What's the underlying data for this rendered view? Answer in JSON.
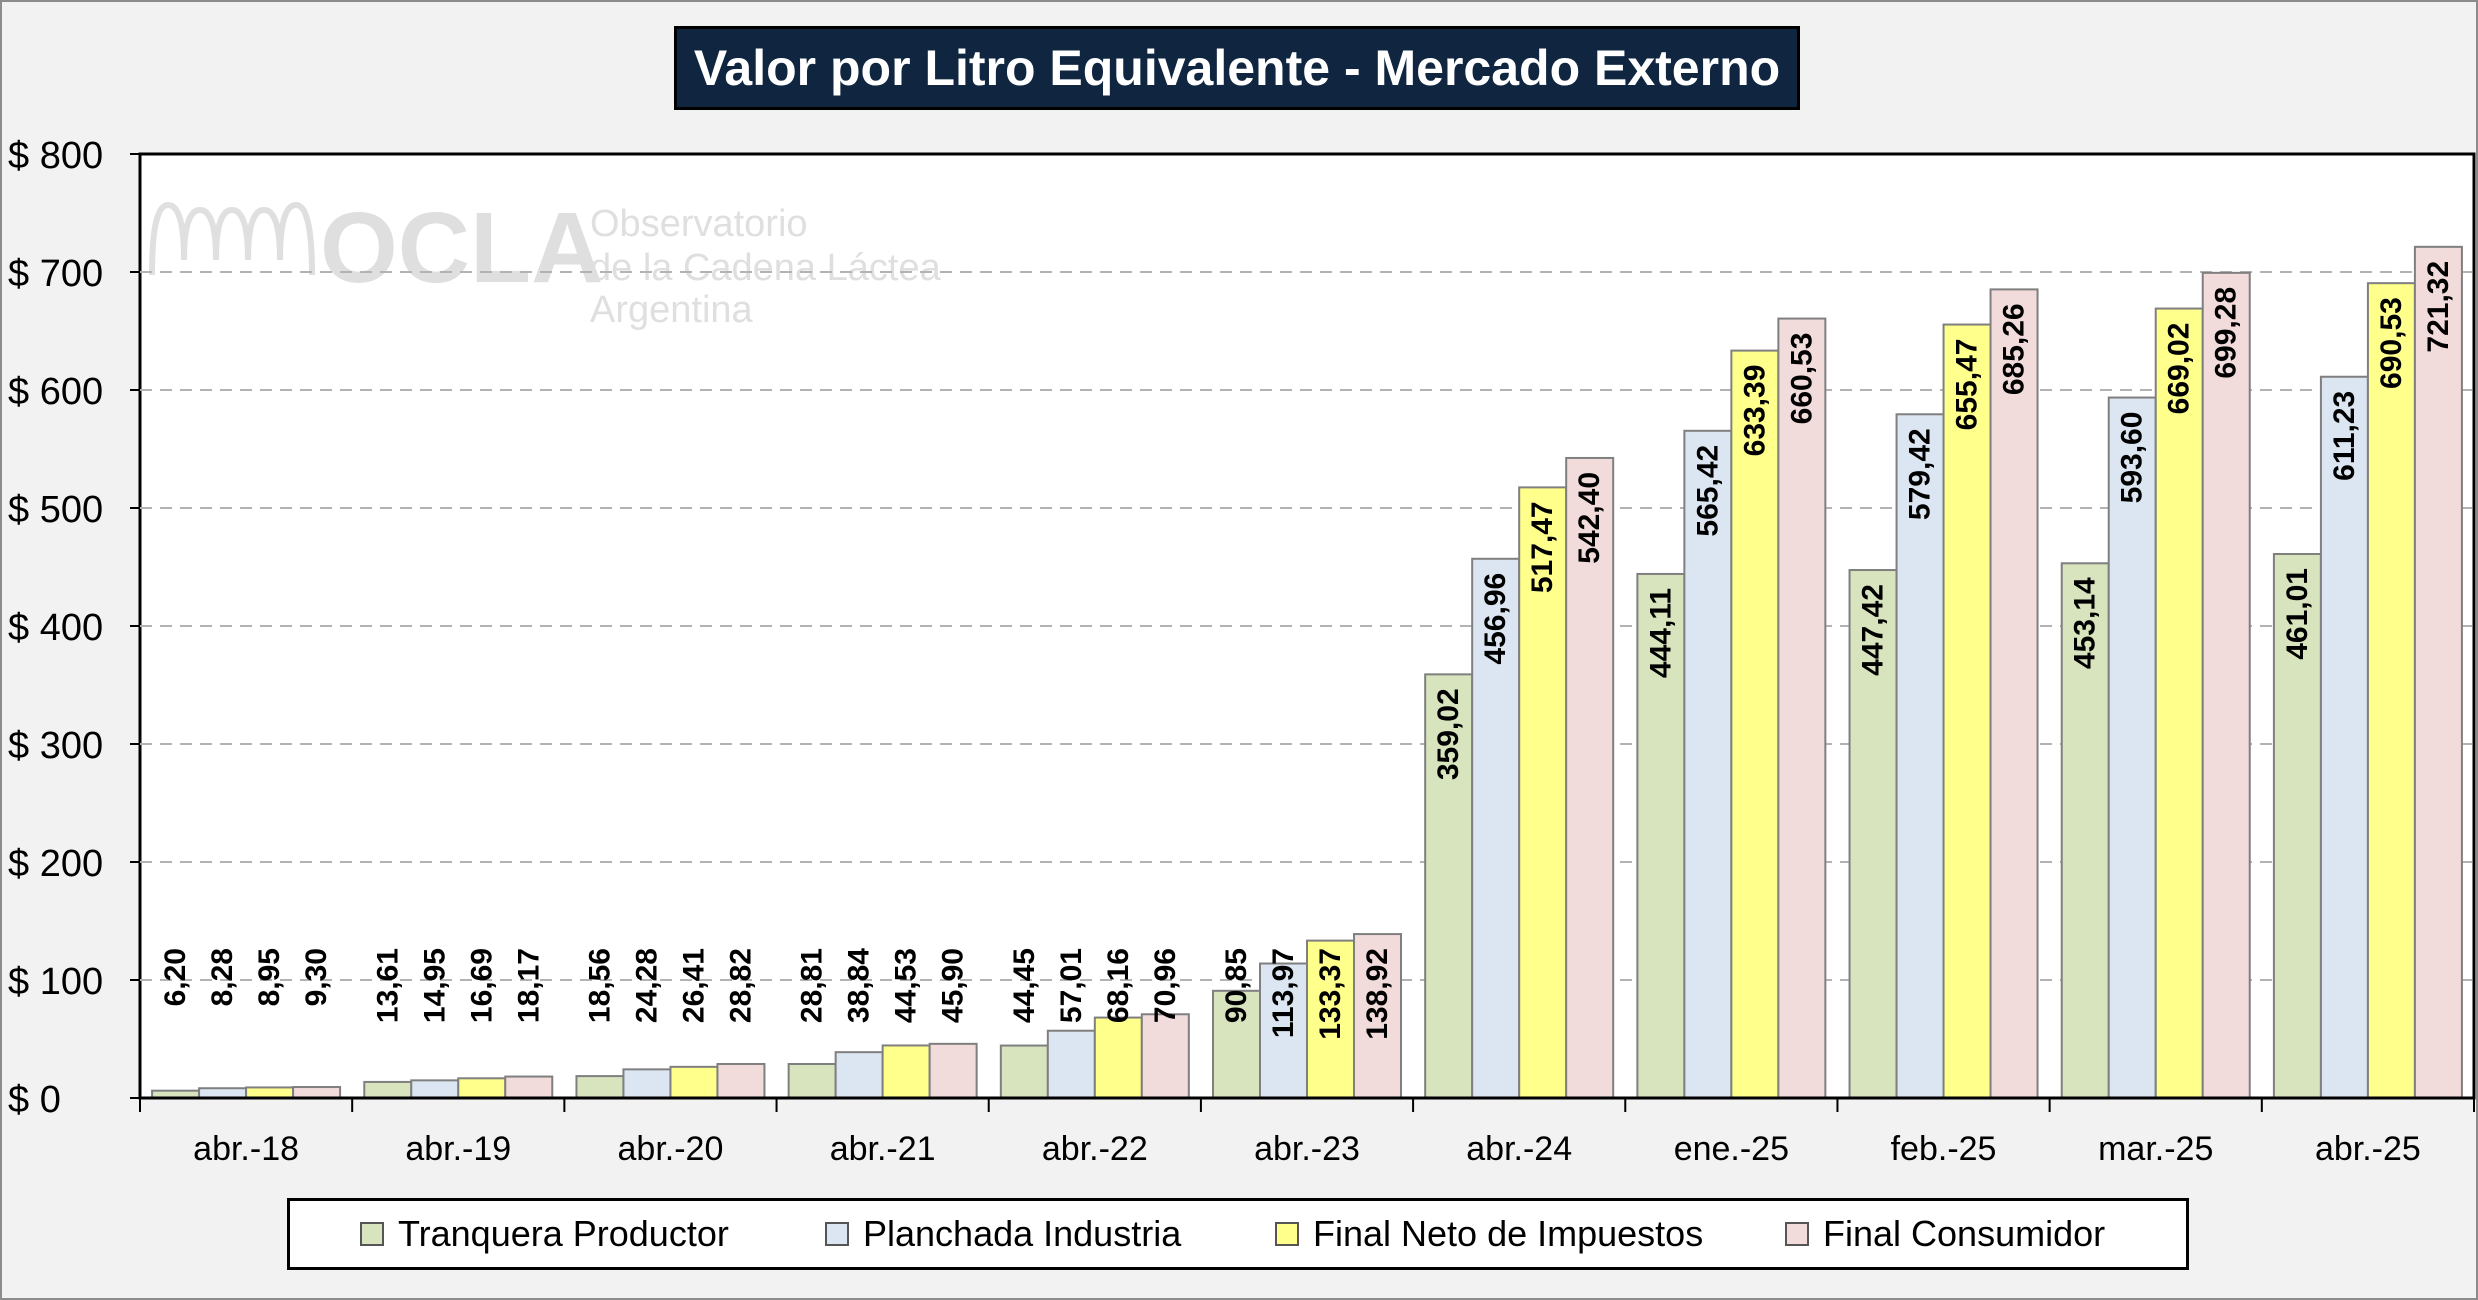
{
  "chart_data": {
    "type": "bar",
    "title": "Valor por Litro Equivalente - Mercado Externo",
    "categories": [
      "abr.-18",
      "abr.-19",
      "abr.-20",
      "abr.-21",
      "abr.-22",
      "abr.-23",
      "abr.-24",
      "ene.-25",
      "feb.-25",
      "mar.-25",
      "abr.-25"
    ],
    "series": [
      {
        "name": "Tranquera Productor",
        "color": "#d7e4bd",
        "values": [
          6.2,
          13.61,
          18.56,
          28.81,
          44.45,
          90.85,
          359.02,
          444.11,
          447.42,
          453.14,
          461.01
        ],
        "labels": [
          "6,20",
          "13,61",
          "18,56",
          "28,81",
          "44,45",
          "90,85",
          "359,02",
          "444,11",
          "447,42",
          "453,14",
          "461,01"
        ]
      },
      {
        "name": "Planchada Industria",
        "color": "#dce6f2",
        "values": [
          8.28,
          14.95,
          24.28,
          38.84,
          57.01,
          113.97,
          456.96,
          565.42,
          579.42,
          593.6,
          611.23
        ],
        "labels": [
          "8,28",
          "14,95",
          "24,28",
          "38,84",
          "57,01",
          "113,97",
          "456,96",
          "565,42",
          "579,42",
          "593,60",
          "611,23"
        ]
      },
      {
        "name": "Final Neto de Impuestos",
        "color": "#ffff8c",
        "values": [
          8.95,
          16.69,
          26.41,
          44.53,
          68.16,
          133.37,
          517.47,
          633.39,
          655.47,
          669.02,
          690.53
        ],
        "labels": [
          "8,95",
          "16,69",
          "26,41",
          "44,53",
          "68,16",
          "133,37",
          "517,47",
          "633,39",
          "655,47",
          "669,02",
          "690,53"
        ]
      },
      {
        "name": "Final Consumidor",
        "color": "#f2dcdb",
        "values": [
          9.3,
          18.17,
          28.82,
          45.9,
          70.96,
          138.92,
          542.4,
          660.53,
          685.26,
          699.28,
          721.32
        ],
        "labels": [
          "9,30",
          "18,17",
          "28,82",
          "45,90",
          "70,96",
          "138,92",
          "542,40",
          "660,53",
          "685,26",
          "699,28",
          "721,32"
        ]
      }
    ],
    "ylim": [
      0,
      800
    ],
    "yticks": [
      0,
      100,
      200,
      300,
      400,
      500,
      600,
      700,
      800
    ],
    "ytick_labels": [
      "$ 0",
      "$ 100",
      "$ 200",
      "$ 300",
      "$ 400",
      "$ 500",
      "$ 600",
      "$ 700",
      "$ 800"
    ],
    "grid": true,
    "legend_position": "bottom"
  },
  "watermark": {
    "logo_text": "OCLA",
    "line1": "Observatorio",
    "line2": "de la Cadena Láctea",
    "line3": "Argentina"
  }
}
